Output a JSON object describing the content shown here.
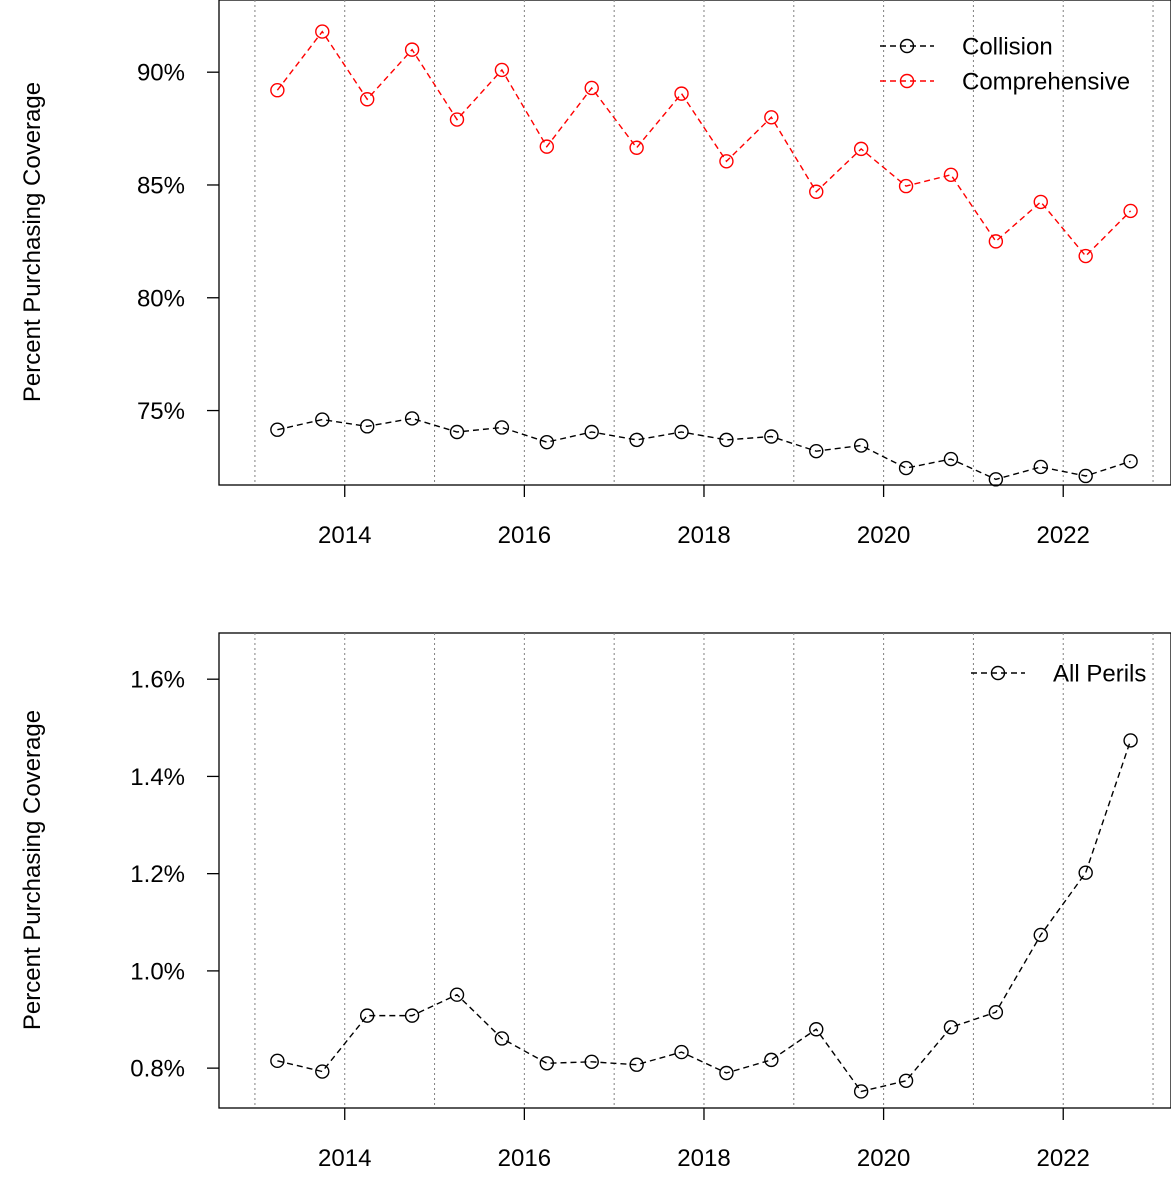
{
  "chart_data": [
    {
      "type": "line",
      "ylabel": "Percent Purchasing Coverage",
      "xlabel": "",
      "x_unit": "year",
      "x_ticks": [
        2014,
        2016,
        2018,
        2020,
        2022
      ],
      "x_tick_labels": [
        "2014",
        "2016",
        "2018",
        "2020",
        "2022"
      ],
      "xlim": [
        2012.6,
        2023.2
      ],
      "ylim": [
        71.7,
        93.2
      ],
      "y_ticks": [
        75,
        80,
        85,
        90
      ],
      "y_tick_labels": [
        "75%",
        "80%",
        "85%",
        "90%"
      ],
      "vertical_gridlines": [
        2013,
        2014,
        2015,
        2016,
        2017,
        2018,
        2019,
        2020,
        2021,
        2022,
        2023
      ],
      "grid": "vertical dotted at years",
      "legend_position": "top-right",
      "line_style": "dashed with open circles",
      "x": [
        2013.25,
        2013.75,
        2014.25,
        2014.75,
        2015.25,
        2015.75,
        2016.25,
        2016.75,
        2017.25,
        2017.75,
        2018.25,
        2018.75,
        2019.25,
        2019.75,
        2020.25,
        2020.75,
        2021.25,
        2021.75,
        2022.25,
        2022.75
      ],
      "series": [
        {
          "name": "Collision",
          "color": "#000000",
          "values": [
            74.15,
            74.6,
            74.3,
            74.65,
            74.05,
            74.25,
            73.6,
            74.05,
            73.7,
            74.05,
            73.7,
            73.85,
            73.2,
            73.45,
            72.45,
            72.85,
            71.95,
            72.5,
            72.1,
            72.75
          ]
        },
        {
          "name": "Comprehensive",
          "color": "#ff0000",
          "values": [
            89.2,
            91.8,
            88.8,
            91.0,
            87.9,
            90.1,
            86.7,
            89.3,
            86.65,
            89.05,
            86.05,
            88.0,
            84.7,
            86.6,
            84.95,
            85.45,
            82.5,
            84.25,
            81.85,
            83.85
          ]
        }
      ]
    },
    {
      "type": "line",
      "ylabel": "Percent Purchasing Coverage",
      "xlabel": "",
      "x_unit": "year",
      "x_ticks": [
        2014,
        2016,
        2018,
        2020,
        2022
      ],
      "x_tick_labels": [
        "2014",
        "2016",
        "2018",
        "2020",
        "2022"
      ],
      "xlim": [
        2012.6,
        2023.2
      ],
      "ylim": [
        0.718,
        1.695
      ],
      "y_ticks": [
        0.8,
        1.0,
        1.2,
        1.4,
        1.6
      ],
      "y_tick_labels": [
        "0.8%",
        "1.0%",
        "1.2%",
        "1.4%",
        "1.6%"
      ],
      "vertical_gridlines": [
        2013,
        2014,
        2015,
        2016,
        2017,
        2018,
        2019,
        2020,
        2021,
        2022,
        2023
      ],
      "grid": "vertical dotted at years",
      "legend_position": "top-right",
      "line_style": "dashed with open circles",
      "x": [
        2013.25,
        2013.75,
        2014.25,
        2014.75,
        2015.25,
        2015.75,
        2016.25,
        2016.75,
        2017.25,
        2017.75,
        2018.25,
        2018.75,
        2019.25,
        2019.75,
        2020.25,
        2020.75,
        2021.25,
        2021.75,
        2022.25,
        2022.75
      ],
      "series": [
        {
          "name": "All Perils",
          "color": "#000000",
          "values": [
            0.815,
            0.793,
            0.908,
            0.908,
            0.951,
            0.861,
            0.81,
            0.813,
            0.807,
            0.833,
            0.79,
            0.817,
            0.88,
            0.752,
            0.774,
            0.884,
            0.915,
            1.074,
            1.202,
            1.474
          ]
        }
      ]
    }
  ]
}
